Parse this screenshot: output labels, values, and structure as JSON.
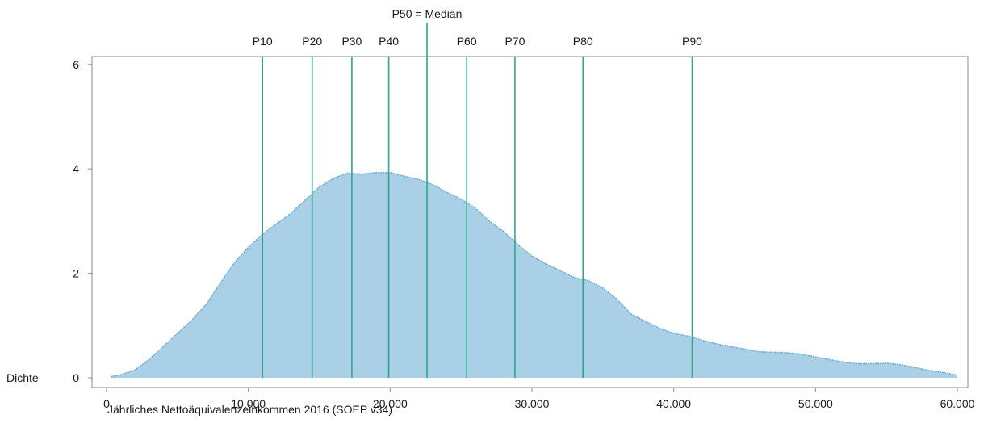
{
  "chart_data": {
    "type": "area",
    "title": "",
    "xlabel": "Jährliches Nettoäquivalenzeinkommen 2016 (SOEP v34)",
    "ylabel": "Dichte",
    "xlim": [
      0,
      60000
    ],
    "ylim": [
      0,
      6.2
    ],
    "x_ticks": [
      0,
      10000,
      20000,
      30000,
      40000,
      50000,
      60000
    ],
    "x_tick_labels": [
      "0",
      "10.000",
      "20.000",
      "30.000",
      "40.000",
      "50.000",
      "60.000"
    ],
    "y_ticks": [
      0,
      2,
      4,
      6
    ],
    "y_tick_labels": [
      "0",
      "2",
      "4",
      "6"
    ],
    "grid": false,
    "legend": "none",
    "colors": {
      "fill": "#a9d0e6",
      "stroke": "#6aa8cf",
      "percentile_line": "#2ea58a",
      "frame": "#8a8a8a"
    },
    "series": [
      {
        "x": [
          300,
          1000,
          2000,
          3000,
          4000,
          5000,
          6000,
          7000,
          8000,
          9000,
          10000,
          11000,
          12000,
          13000,
          14000,
          15000,
          16000,
          17000,
          18000,
          19000,
          20000,
          21000,
          22000,
          23000,
          24000,
          25000,
          26000,
          27000,
          28000,
          29000,
          30000,
          31000,
          32000,
          33000,
          34000,
          35000,
          36000,
          37000,
          38000,
          39000,
          40000,
          41000,
          42000,
          43000,
          44000,
          45000,
          46000,
          47000,
          48000,
          49000,
          50000,
          51000,
          52000,
          53000,
          54000,
          55000,
          56000,
          57000,
          58000,
          59000,
          60000
        ],
        "y": [
          0.02,
          0.06,
          0.15,
          0.35,
          0.6,
          0.85,
          1.1,
          1.4,
          1.8,
          2.2,
          2.5,
          2.75,
          2.95,
          3.15,
          3.4,
          3.65,
          3.82,
          3.92,
          3.9,
          3.93,
          3.93,
          3.86,
          3.8,
          3.7,
          3.55,
          3.42,
          3.25,
          3.0,
          2.8,
          2.55,
          2.33,
          2.18,
          2.05,
          1.92,
          1.86,
          1.72,
          1.5,
          1.22,
          1.08,
          0.95,
          0.85,
          0.8,
          0.72,
          0.65,
          0.6,
          0.55,
          0.5,
          0.49,
          0.48,
          0.45,
          0.4,
          0.35,
          0.3,
          0.27,
          0.27,
          0.28,
          0.25,
          0.2,
          0.14,
          0.1,
          0.05
        ]
      }
    ],
    "percentiles": [
      {
        "label": "P10",
        "x": 11000
      },
      {
        "label": "P20",
        "x": 14500
      },
      {
        "label": "P30",
        "x": 17300
      },
      {
        "label": "P40",
        "x": 19900
      },
      {
        "label": "P50 = Median",
        "x": 22600
      },
      {
        "label": "P60",
        "x": 25400
      },
      {
        "label": "P70",
        "x": 28800
      },
      {
        "label": "P80",
        "x": 33600
      },
      {
        "label": "P90",
        "x": 41300
      }
    ]
  }
}
